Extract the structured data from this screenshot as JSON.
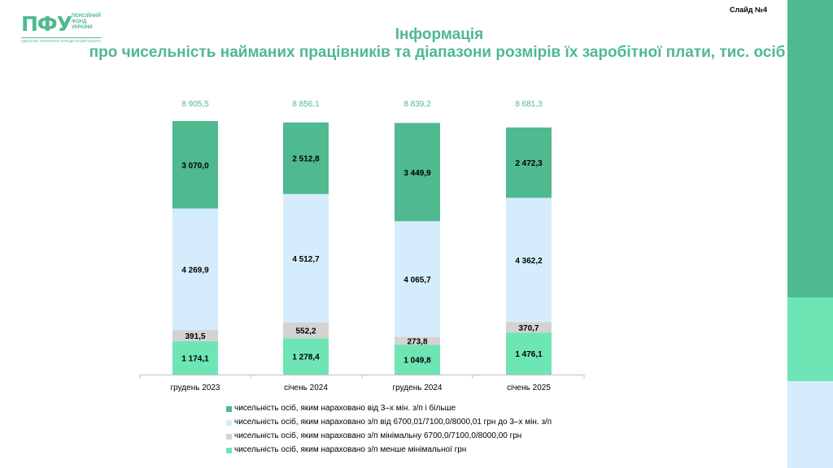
{
  "header": {
    "logo_mark": "ПФУ",
    "logo_text": "ПЕНСІЙНИЙ\nФОНД\nУКРАЇНИ",
    "logo_motto": "ЄДНАЄМО ПОКОЛІННЯ ЗАРАДИ МАЙБУТНЬОГО",
    "slide_label": "Слайд №4"
  },
  "chart_data": {
    "type": "bar",
    "stacked": true,
    "title": "Інформація",
    "subtitle": "про чисельність найманих працівників та діапазони розмірів їх заробітної плати, тис. осіб",
    "categories": [
      "грудень 2023",
      "січень 2024",
      "грудень 2024",
      "січень 2025"
    ],
    "totals": [
      "8 905,5",
      "8 856,1",
      "8 839,2",
      "8 681,3"
    ],
    "total_values": [
      8905.5,
      8856.1,
      8839.2,
      8681.3
    ],
    "series": [
      {
        "name": "чисельність осіб, яким нараховано з/п менше мінімальної грн",
        "values": [
          1174.1,
          1278.4,
          1049.8,
          1476.1
        ],
        "labels": [
          "1 174,1",
          "1 278,4",
          "1 049,8",
          "1 476,1"
        ],
        "color": "#6ee5b4"
      },
      {
        "name": "чисельність осіб, яким нараховано з/п  мінімальну 6700,0/7100,0/8000,00  грн",
        "values": [
          391.5,
          552.2,
          273.8,
          370.7
        ],
        "labels": [
          "391,5",
          "552,2",
          "273,8",
          "370,7"
        ],
        "color": "#d3d3d3"
      },
      {
        "name": "чисельність осіб, яким нараховано з/п від 6700,01/7100,0/8000,01  грн до 3–х мін. з/п",
        "values": [
          4269.9,
          4512.7,
          4065.7,
          4362.2
        ],
        "labels": [
          "4 269,9",
          "4 512,7",
          "4 065,7",
          "4 362,2"
        ],
        "color": "#d4ecfb"
      },
      {
        "name": "чисельність осіб, яким нараховано від 3–х мін. з/п і більше",
        "values": [
          3070.0,
          2512.8,
          3449.9,
          2472.3
        ],
        "labels": [
          "3 070,0",
          "2 512,8",
          "3 449,9",
          "2 472,3"
        ],
        "color": "#4fb98f"
      }
    ],
    "legend_order": [
      3,
      2,
      1,
      0
    ],
    "legend_position": "bottom",
    "grid": false,
    "total_label_color": "#4fb98f",
    "title_color": "#4fb98f"
  },
  "rail_colors": [
    "#4fb98f",
    "#6ee5b4",
    "#d4ecfb"
  ]
}
